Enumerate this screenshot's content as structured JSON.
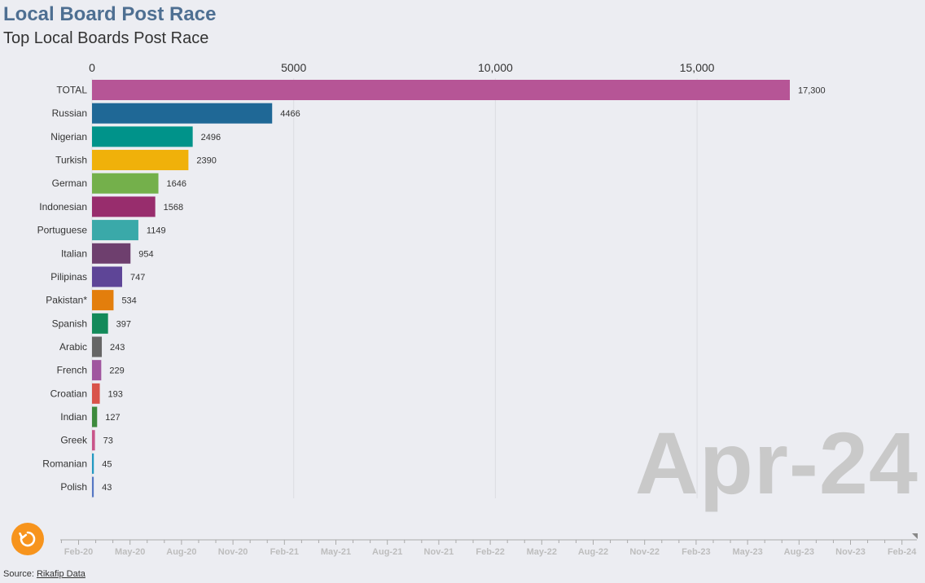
{
  "header": {
    "title": "Local Board Post Race",
    "subtitle": "Top Local Boards Post Race"
  },
  "watermark": "Apr-24",
  "source": {
    "prefix": "Source: ",
    "link_text": "Rikafip Data"
  },
  "controls": {
    "replay_icon": "replay-icon",
    "replay_color": "#f7941d"
  },
  "timeline": {
    "labels": [
      "Feb-20",
      "May-20",
      "Aug-20",
      "Nov-20",
      "Feb-21",
      "May-21",
      "Aug-21",
      "Nov-21",
      "Feb-22",
      "May-22",
      "Aug-22",
      "Nov-22",
      "Feb-23",
      "May-23",
      "Aug-23",
      "Nov-23",
      "Feb-24"
    ]
  },
  "chart_data": {
    "type": "bar",
    "orientation": "horizontal",
    "categories": [
      "TOTAL",
      "Russian",
      "Nigerian",
      "Turkish",
      "German",
      "Indonesian",
      "Portuguese",
      "Italian",
      "Pilipinas",
      "Pakistan*",
      "Spanish",
      "Arabic",
      "French",
      "Croatian",
      "Indian",
      "Greek",
      "Romanian",
      "Polish"
    ],
    "values": [
      17300,
      4466,
      2496,
      2390,
      1646,
      1568,
      1149,
      954,
      747,
      534,
      397,
      243,
      229,
      193,
      127,
      73,
      45,
      43
    ],
    "value_labels": [
      "17,300",
      "4466",
      "2496",
      "2390",
      "1646",
      "1568",
      "1149",
      "954",
      "747",
      "534",
      "397",
      "243",
      "229",
      "193",
      "127",
      "73",
      "45",
      "43"
    ],
    "colors": [
      "#b65596",
      "#1f6896",
      "#00938a",
      "#f0b10a",
      "#74b04b",
      "#982d6d",
      "#3aa9a9",
      "#6e3f6e",
      "#5e4597",
      "#e37e0c",
      "#138a5a",
      "#666666",
      "#a0569f",
      "#d9534a",
      "#3d8a3d",
      "#c9558a",
      "#2299c2",
      "#5577c4"
    ],
    "xlim": [
      0,
      17300
    ],
    "ticks": [
      0,
      5000,
      10000,
      15000
    ],
    "tick_labels": [
      "0",
      "5000",
      "10,000",
      "15,000"
    ],
    "grid": true,
    "axis_position": "top"
  }
}
